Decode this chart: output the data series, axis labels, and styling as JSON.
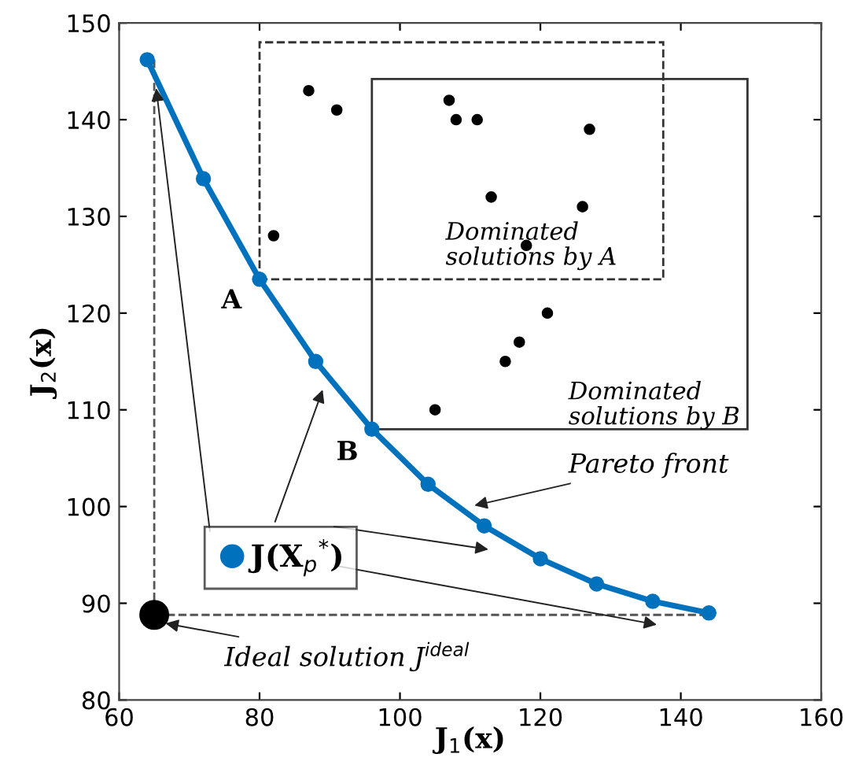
{
  "chart_data": {
    "type": "line",
    "xlabel": "J$_{1}$(x)",
    "ylabel": "J$_{2}$(x)",
    "xlim": [
      60,
      160
    ],
    "ylim": [
      80,
      150
    ],
    "xticks": [
      60,
      80,
      100,
      120,
      140,
      160
    ],
    "yticks": [
      80,
      90,
      100,
      110,
      120,
      130,
      140,
      150
    ],
    "grid": false,
    "legend": "left",
    "series": [
      {
        "name": "J(X$_{p}$$^{*}$)",
        "color": "#0072bd",
        "marker": "circle",
        "line_style": "solid",
        "x": [
          64,
          72,
          80,
          88,
          96,
          104,
          112,
          120,
          128,
          136,
          144
        ],
        "values": [
          146.2,
          133.9,
          123.5,
          115,
          108,
          102.3,
          98,
          94.6,
          92,
          90.2,
          89
        ]
      },
      {
        "type": "scatter",
        "color": "#000000",
        "marker": "circle",
        "x": [
          82,
          87,
          91,
          107,
          108,
          111,
          127,
          113,
          126,
          118,
          121,
          117,
          115,
          105
        ],
        "values": [
          128,
          143,
          141,
          142,
          140,
          140,
          139,
          132,
          131,
          127,
          120,
          117,
          115,
          110
        ]
      },
      {
        "type": "scatter",
        "color": "#000000",
        "marker": "circle",
        "x": [
          65
        ],
        "values": [
          88.8
        ]
      },
      {
        "type": "line",
        "color": "#555555",
        "marker": "none",
        "line_style": "dashed",
        "x": [
          65,
          65,
          144
        ],
        "values": [
          146.2,
          88.8,
          88.8
        ]
      }
    ],
    "annotations": [
      {
        "text": "A",
        "x": 80,
        "y": 123.5
      },
      {
        "text": "B",
        "x": 96,
        "y": 108
      },
      "Dominated\nsolutions by A",
      "Dominated\nsolutions by B",
      {
        "text": "Pareto front",
        "x": 110,
        "y": 100
      },
      {
        "text": "Ideal solution J$^{ideal}$",
        "x": 65,
        "y": 88.8
      }
    ]
  }
}
